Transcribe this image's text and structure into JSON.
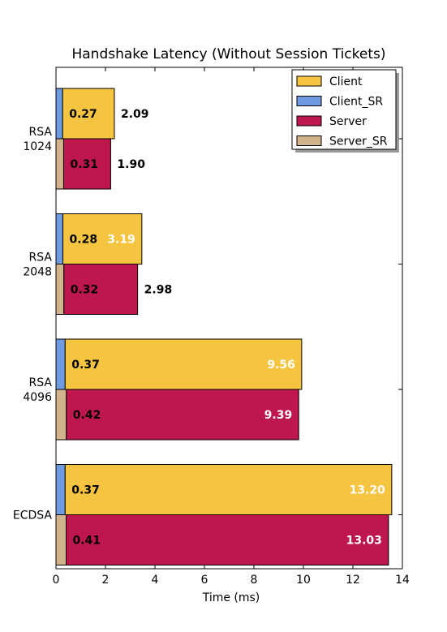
{
  "chart_data": {
    "type": "bar",
    "orientation": "horizontal",
    "title": "Handshake Latency (Without Session Tickets)",
    "xlabel": "Time (ms)",
    "ylabel": "",
    "xlim": [
      0,
      14
    ],
    "xticks": [
      0,
      2,
      4,
      6,
      8,
      10,
      12,
      14
    ],
    "categories": [
      {
        "lines": [
          "RSA",
          "1024"
        ]
      },
      {
        "lines": [
          "RSA",
          "2048"
        ]
      },
      {
        "lines": [
          "RSA",
          "4096"
        ]
      },
      {
        "lines": [
          "ECDSA"
        ]
      }
    ],
    "series": [
      {
        "name": "Client",
        "color": "#F5C542",
        "values": [
          2.09,
          3.19,
          9.56,
          13.2
        ],
        "labels": [
          "2.09",
          "3.19",
          "9.56",
          "13.20"
        ]
      },
      {
        "name": "Client_SR",
        "color": "#6F9BE0",
        "values": [
          0.27,
          0.28,
          0.37,
          0.37
        ],
        "labels": [
          "0.27",
          "0.28",
          "0.37",
          "0.37"
        ]
      },
      {
        "name": "Server",
        "color": "#BE174E",
        "values": [
          1.9,
          2.98,
          9.39,
          13.03
        ],
        "labels": [
          "1.90",
          "2.98",
          "9.39",
          "13.03"
        ]
      },
      {
        "name": "Server_SR",
        "color": "#D2B48C",
        "values": [
          0.31,
          0.32,
          0.42,
          0.41
        ],
        "labels": [
          "0.31",
          "0.32",
          "0.42",
          "0.41"
        ]
      }
    ],
    "legend_position": "top-right",
    "grid": false
  }
}
